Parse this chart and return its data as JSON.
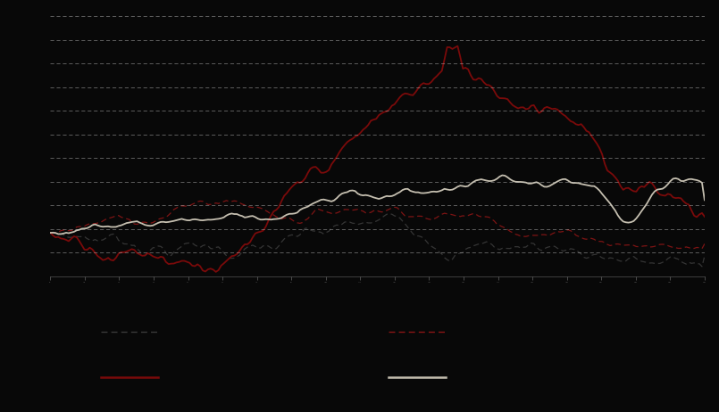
{
  "background_color": "#080808",
  "plot_bg_color": "#080808",
  "n_points": 250,
  "line1_color": "#3a3a3a",
  "line2_color": "#8b1515",
  "line3_color": "#7a0a0a",
  "line4_color": "#c5bfb0",
  "grid_color": "#aaaaaa",
  "figsize": [
    8.05,
    4.62
  ],
  "dpi": 100
}
